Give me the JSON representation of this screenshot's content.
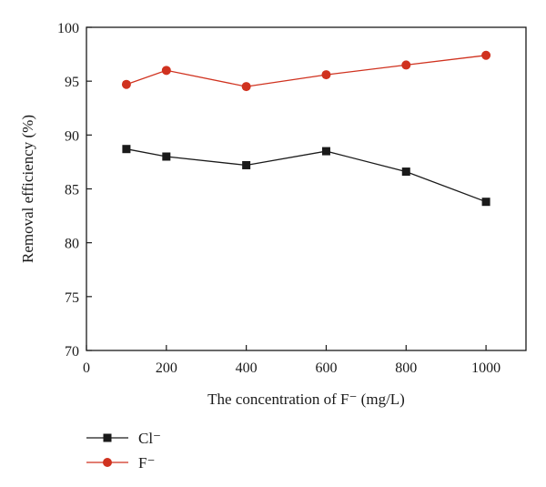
{
  "chart_data": {
    "type": "line",
    "xlabel": "The concentration of F⁻ (mg/L)",
    "ylabel": "Removal efficiency (%)",
    "xlim": [
      0,
      1100
    ],
    "ylim": [
      70,
      100
    ],
    "x_ticks": [
      0,
      200,
      400,
      600,
      800,
      1000
    ],
    "y_ticks": [
      70,
      75,
      80,
      85,
      90,
      95,
      100
    ],
    "x": [
      100,
      200,
      400,
      600,
      800,
      1000
    ],
    "series": [
      {
        "name": "Cl⁻",
        "values": [
          88.7,
          88.0,
          87.2,
          88.5,
          86.6,
          83.8
        ],
        "color": "#1a1a1a",
        "marker": "square"
      },
      {
        "name": "F⁻",
        "values": [
          94.7,
          96.0,
          94.5,
          95.6,
          96.5,
          97.4
        ],
        "color": "#d0321f",
        "marker": "circle"
      }
    ],
    "grid": false,
    "legend_position": "bottom-left, below plot"
  }
}
